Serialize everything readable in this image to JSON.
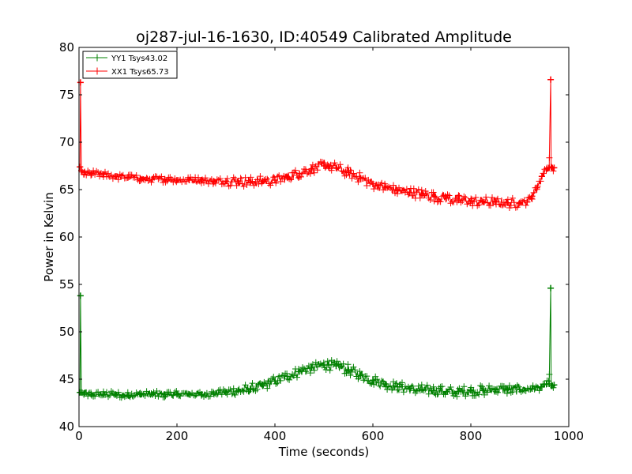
{
  "chart_data": {
    "type": "line",
    "title": "oj287-jul-16-1630, ID:40549 Calibrated Amplitude",
    "xlabel": "Time (seconds)",
    "ylabel": "Power in Kelvin",
    "xlim": [
      0,
      1000
    ],
    "ylim": [
      40,
      80
    ],
    "xticks": [
      0,
      200,
      400,
      600,
      800,
      1000
    ],
    "yticks": [
      40,
      45,
      50,
      55,
      60,
      65,
      70,
      75,
      80
    ],
    "grid": false,
    "legend_position": "top-left",
    "marker": "plus",
    "series": [
      {
        "name": "YY1 Tsys43.02",
        "color": "#008000",
        "x": [
          2,
          3,
          5,
          10,
          25,
          50,
          75,
          100,
          125,
          150,
          175,
          200,
          225,
          250,
          275,
          300,
          325,
          350,
          375,
          400,
          425,
          450,
          475,
          500,
          510,
          525,
          550,
          575,
          600,
          625,
          650,
          675,
          700,
          725,
          750,
          775,
          800,
          825,
          850,
          875,
          900,
          925,
          945,
          955,
          960,
          963,
          964,
          966,
          970
        ],
        "y": [
          43.6,
          53.8,
          43.6,
          43.5,
          43.4,
          43.4,
          43.4,
          43.3,
          43.4,
          43.4,
          43.4,
          43.4,
          43.4,
          43.4,
          43.5,
          43.6,
          43.8,
          44.0,
          44.3,
          44.8,
          45.3,
          45.8,
          46.2,
          46.5,
          46.5,
          46.4,
          46.0,
          45.4,
          44.9,
          44.5,
          44.2,
          44.0,
          43.9,
          43.8,
          43.7,
          43.7,
          43.8,
          43.8,
          43.9,
          43.9,
          43.9,
          44.0,
          44.2,
          44.5,
          44.5,
          54.6,
          44.3,
          44.3,
          44.4
        ]
      },
      {
        "name": "XX1 Tsys65.73",
        "color": "#ff0000",
        "x": [
          2,
          3,
          5,
          10,
          25,
          50,
          75,
          100,
          125,
          150,
          175,
          200,
          225,
          250,
          275,
          300,
          325,
          350,
          375,
          400,
          425,
          450,
          475,
          500,
          510,
          525,
          550,
          575,
          600,
          625,
          650,
          675,
          700,
          725,
          750,
          775,
          800,
          825,
          850,
          875,
          900,
          915,
          925,
          935,
          945,
          955,
          960,
          963,
          964,
          966,
          970
        ],
        "y": [
          67.4,
          76.3,
          67.0,
          66.6,
          66.7,
          66.6,
          66.4,
          66.3,
          66.2,
          66.1,
          66.1,
          66.0,
          66.0,
          66.0,
          65.9,
          65.9,
          65.9,
          65.8,
          65.9,
          66.0,
          66.3,
          66.7,
          67.2,
          67.5,
          67.5,
          67.3,
          66.8,
          66.2,
          65.6,
          65.2,
          64.9,
          64.7,
          64.5,
          64.3,
          64.1,
          63.9,
          63.8,
          63.7,
          63.7,
          63.6,
          63.6,
          63.7,
          64.3,
          65.2,
          66.4,
          67.2,
          67.3,
          76.6,
          67.4,
          67.3,
          67.3
        ]
      }
    ]
  }
}
